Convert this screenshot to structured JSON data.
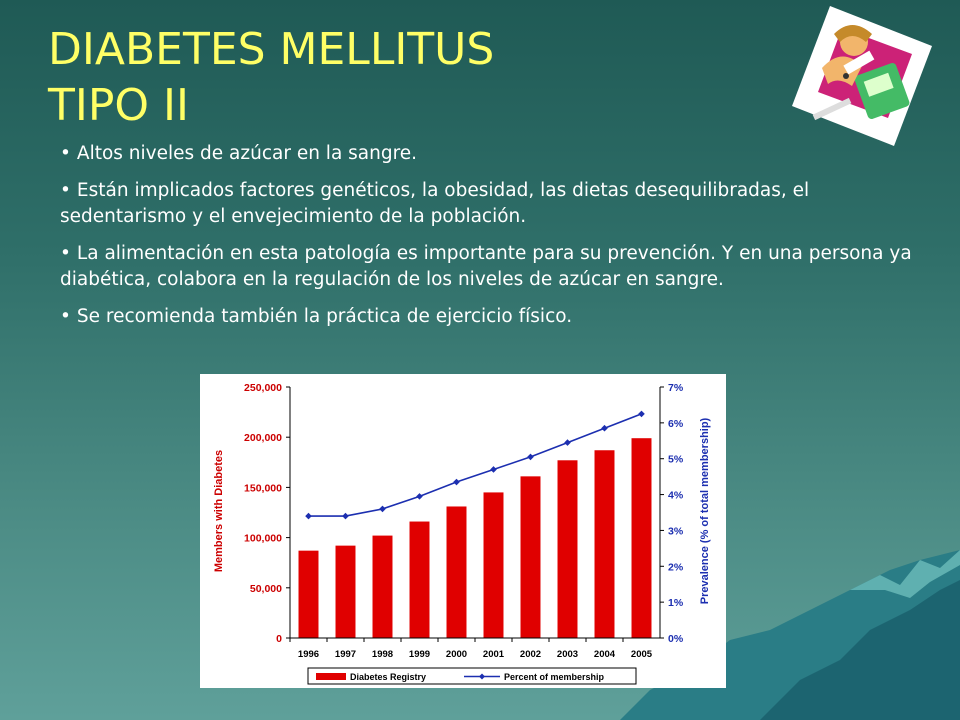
{
  "slide": {
    "title_line1": "DIABETES MELLITUS",
    "title_line2": "TIPO II",
    "bullets": [
      "Altos niveles de azúcar en la sangre.",
      "Están implicados factores genéticos, la obesidad, las dietas desequilibradas, el sedentarismo y el envejecimiento de la población.",
      "La alimentación en esta patología es importante para su prevención. Y en una persona ya diabética, colabora en la regulación de los niveles de azúcar en sangre.",
      "Se recomienda también la práctica de ejercicio físico."
    ],
    "bullet_char": "•"
  },
  "colors": {
    "title": "#ffff66",
    "bar": "#e00000",
    "line": "#1c2fb0",
    "left_axis_text": "#cc0000",
    "right_axis_text": "#1c2fb0"
  },
  "chart_data": {
    "type": "bar",
    "categories": [
      "1996",
      "1997",
      "1998",
      "1999",
      "2000",
      "2001",
      "2002",
      "2003",
      "2004",
      "2005"
    ],
    "series": [
      {
        "name": "Diabetes Registry",
        "type": "bar",
        "axis": "left",
        "values": [
          87000,
          92000,
          102000,
          116000,
          131000,
          145000,
          161000,
          177000,
          187000,
          199000
        ]
      },
      {
        "name": "Percent of membership",
        "type": "line",
        "axis": "right",
        "values": [
          3.4,
          3.4,
          3.6,
          3.95,
          4.35,
          4.7,
          5.05,
          5.45,
          5.85,
          6.25
        ]
      }
    ],
    "ylabel": "Members with Diabetes",
    "y2label": "Prevalence  (% of total membership)",
    "ylim": [
      0,
      250000
    ],
    "y2lim": [
      0,
      7
    ],
    "yticks": [
      "0",
      "50,000",
      "100,000",
      "150,000",
      "200,000",
      "250,000"
    ],
    "y2ticks": [
      "0%",
      "1%",
      "2%",
      "3%",
      "4%",
      "5%",
      "6%",
      "7%"
    ],
    "legend_position": "bottom",
    "grid": false
  }
}
